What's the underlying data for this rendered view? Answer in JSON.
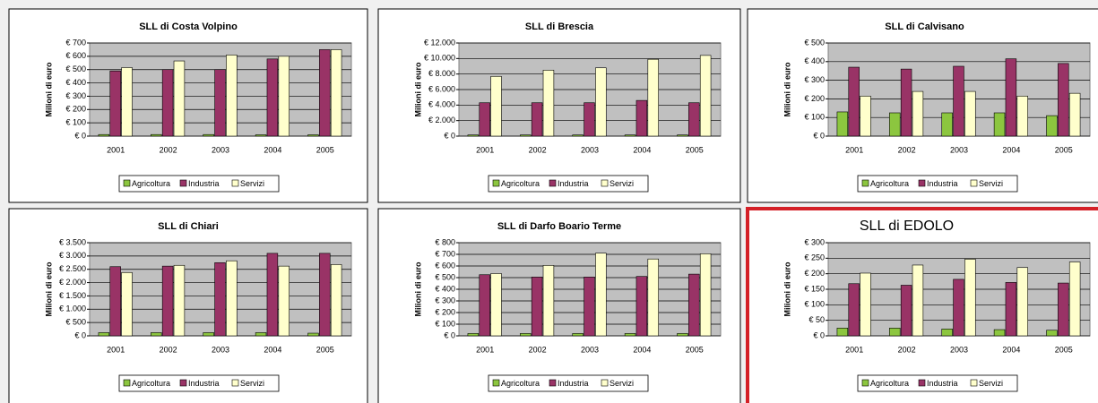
{
  "chart_data": [
    {
      "type": "bar",
      "title": "SLL di Costa Volpino",
      "title_color": "#000000",
      "border_color": "#000000",
      "y_label": "Milioni di euro",
      "categories": [
        "2001",
        "2002",
        "2003",
        "2004",
        "2005"
      ],
      "series": [
        {
          "name": "Agricoltura",
          "color": "#8cc63f",
          "values": [
            12,
            12,
            12,
            10,
            10
          ]
        },
        {
          "name": "Industria",
          "color": "#993366",
          "values": [
            490,
            500,
            500,
            580,
            650
          ]
        },
        {
          "name": "Servizi",
          "color": "#ffffcc",
          "values": [
            515,
            565,
            610,
            600,
            650
          ]
        }
      ],
      "ylim": [
        0,
        700
      ],
      "yticks": [
        {
          "value": 0,
          "label": "€ 0"
        },
        {
          "value": 100,
          "label": "€ 100"
        },
        {
          "value": 200,
          "label": "€ 200"
        },
        {
          "value": 300,
          "label": "€ 300"
        },
        {
          "value": 400,
          "label": "€ 400"
        },
        {
          "value": 500,
          "label": "€ 500"
        },
        {
          "value": 600,
          "label": "€ 600"
        },
        {
          "value": 700,
          "label": "€ 700"
        }
      ],
      "grid": true
    },
    {
      "type": "bar",
      "title": "SLL di Brescia",
      "title_color": "#000000",
      "border_color": "#000000",
      "y_label": "Milioni di euro",
      "categories": [
        "2001",
        "2002",
        "2003",
        "2004",
        "2005"
      ],
      "series": [
        {
          "name": "Agricoltura",
          "color": "#8cc63f",
          "values": [
            150,
            150,
            150,
            150,
            150
          ]
        },
        {
          "name": "Industria",
          "color": "#993366",
          "values": [
            4300,
            4300,
            4300,
            4600,
            4300
          ]
        },
        {
          "name": "Servizi",
          "color": "#ffffcc",
          "values": [
            7700,
            8500,
            8800,
            9900,
            10400
          ]
        }
      ],
      "ylim": [
        0,
        12000
      ],
      "yticks": [
        {
          "value": 0,
          "label": "€ 0"
        },
        {
          "value": 2000,
          "label": "€ 2.000"
        },
        {
          "value": 4000,
          "label": "€ 4.000"
        },
        {
          "value": 6000,
          "label": "€ 6.000"
        },
        {
          "value": 8000,
          "label": "€ 8.000"
        },
        {
          "value": 10000,
          "label": "€ 10.000"
        },
        {
          "value": 12000,
          "label": "€ 12.000"
        }
      ],
      "grid": true
    },
    {
      "type": "bar",
      "title": "SLL di Calvisano",
      "title_color": "#000000",
      "border_color": "#000000",
      "y_label": "Milioni di euro",
      "categories": [
        "2001",
        "2002",
        "2003",
        "2004",
        "2005"
      ],
      "series": [
        {
          "name": "Agricoltura",
          "color": "#8cc63f",
          "values": [
            130,
            125,
            125,
            125,
            110
          ]
        },
        {
          "name": "Industria",
          "color": "#993366",
          "values": [
            370,
            360,
            375,
            415,
            390
          ]
        },
        {
          "name": "Servizi",
          "color": "#ffffcc",
          "values": [
            215,
            240,
            240,
            215,
            230
          ]
        }
      ],
      "ylim": [
        0,
        500
      ],
      "yticks": [
        {
          "value": 0,
          "label": "€ 0"
        },
        {
          "value": 100,
          "label": "€ 100"
        },
        {
          "value": 200,
          "label": "€ 200"
        },
        {
          "value": 300,
          "label": "€ 300"
        },
        {
          "value": 400,
          "label": "€ 400"
        },
        {
          "value": 500,
          "label": "€ 500"
        }
      ],
      "grid": true
    },
    {
      "type": "bar",
      "title": "SLL di Chiari",
      "title_color": "#000000",
      "border_color": "#000000",
      "y_label": "Milioni di euro",
      "categories": [
        "2001",
        "2002",
        "2003",
        "2004",
        "2005"
      ],
      "series": [
        {
          "name": "Agricoltura",
          "color": "#8cc63f",
          "values": [
            120,
            120,
            120,
            120,
            100
          ]
        },
        {
          "name": "Industria",
          "color": "#993366",
          "values": [
            2600,
            2620,
            2750,
            3100,
            3100
          ]
        },
        {
          "name": "Servizi",
          "color": "#ffffcc",
          "values": [
            2380,
            2650,
            2820,
            2620,
            2680
          ]
        }
      ],
      "ylim": [
        0,
        3500
      ],
      "yticks": [
        {
          "value": 0,
          "label": "€ 0"
        },
        {
          "value": 500,
          "label": "€ 500"
        },
        {
          "value": 1000,
          "label": "€ 1.000"
        },
        {
          "value": 1500,
          "label": "€ 1.500"
        },
        {
          "value": 2000,
          "label": "€ 2.000"
        },
        {
          "value": 2500,
          "label": "€ 2.500"
        },
        {
          "value": 3000,
          "label": "€ 3.000"
        },
        {
          "value": 3500,
          "label": "€ 3.500"
        }
      ],
      "grid": true
    },
    {
      "type": "bar",
      "title": "SLL di Darfo Boario Terme",
      "title_color": "#000000",
      "border_color": "#000000",
      "y_label": "Milioni di euro",
      "categories": [
        "2001",
        "2002",
        "2003",
        "2004",
        "2005"
      ],
      "series": [
        {
          "name": "Agricoltura",
          "color": "#8cc63f",
          "values": [
            20,
            20,
            20,
            20,
            20
          ]
        },
        {
          "name": "Industria",
          "color": "#993366",
          "values": [
            525,
            505,
            505,
            510,
            530
          ]
        },
        {
          "name": "Servizi",
          "color": "#ffffcc",
          "values": [
            535,
            605,
            710,
            660,
            705
          ]
        }
      ],
      "ylim": [
        0,
        800
      ],
      "yticks": [
        {
          "value": 0,
          "label": "€ 0"
        },
        {
          "value": 100,
          "label": "€ 100"
        },
        {
          "value": 200,
          "label": "€ 200"
        },
        {
          "value": 300,
          "label": "€ 300"
        },
        {
          "value": 400,
          "label": "€ 400"
        },
        {
          "value": 500,
          "label": "€ 500"
        },
        {
          "value": 600,
          "label": "€ 600"
        },
        {
          "value": 700,
          "label": "€ 700"
        },
        {
          "value": 800,
          "label": "€ 800"
        }
      ],
      "grid": true
    },
    {
      "type": "bar",
      "title": "SLL di EDOLO",
      "title_color": "#d42027",
      "border_color": "#d42027",
      "y_label": "Milioni di euro",
      "categories": [
        "2001",
        "2002",
        "2003",
        "2004",
        "2005"
      ],
      "series": [
        {
          "name": "Agricoltura",
          "color": "#8cc63f",
          "values": [
            25,
            25,
            22,
            20,
            18
          ]
        },
        {
          "name": "Industria",
          "color": "#993366",
          "values": [
            168,
            163,
            182,
            172,
            170
          ]
        },
        {
          "name": "Servizi",
          "color": "#ffffcc",
          "values": [
            202,
            228,
            247,
            220,
            238
          ]
        }
      ],
      "ylim": [
        0,
        300
      ],
      "yticks": [
        {
          "value": 0,
          "label": "€ 0"
        },
        {
          "value": 50,
          "label": "€ 50"
        },
        {
          "value": 100,
          "label": "€ 100"
        },
        {
          "value": 150,
          "label": "€ 150"
        },
        {
          "value": 200,
          "label": "€ 200"
        },
        {
          "value": 250,
          "label": "€ 250"
        },
        {
          "value": 300,
          "label": "€ 300"
        }
      ],
      "grid": true
    }
  ]
}
